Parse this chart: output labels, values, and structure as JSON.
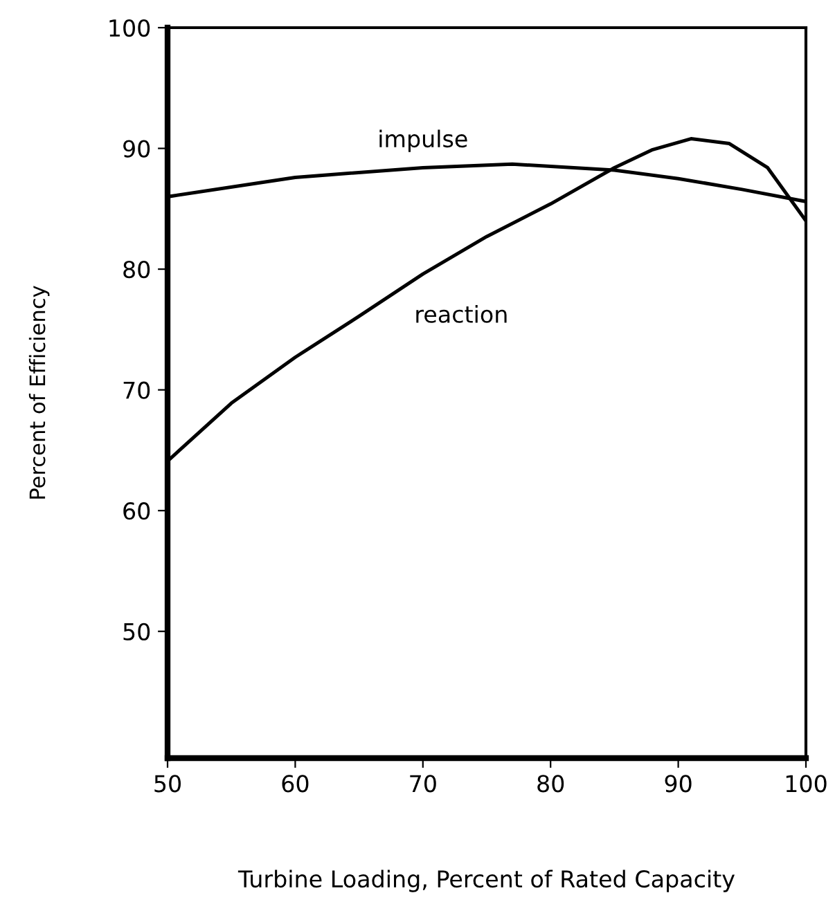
{
  "chart_data": {
    "type": "line",
    "xlabel": "Turbine Loading, Percent of Rated Capacity",
    "ylabel": "Percent of Efficiency",
    "xlim": [
      50,
      100
    ],
    "xticks": [
      50,
      60,
      70,
      80,
      90,
      100
    ],
    "ylim": [
      39.5,
      100
    ],
    "yticks": [
      50,
      60,
      70,
      80,
      90,
      100
    ],
    "grid": false,
    "marker": "none",
    "line_style": "solid",
    "series": [
      {
        "name": "impulse",
        "color": "#000000",
        "x": [
          50,
          60,
          70,
          77,
          85,
          90,
          95,
          100
        ],
        "values": [
          86.0,
          87.6,
          88.4,
          88.7,
          88.2,
          87.5,
          86.6,
          85.6
        ]
      },
      {
        "name": "reaction",
        "color": "#000000",
        "x": [
          50,
          55,
          60,
          65,
          70,
          75,
          80,
          85,
          88,
          91,
          94,
          97,
          100
        ],
        "values": [
          64.1,
          68.9,
          72.7,
          76.1,
          79.6,
          82.7,
          85.4,
          88.4,
          89.9,
          90.8,
          90.4,
          88.4,
          84.0
        ]
      }
    ]
  }
}
